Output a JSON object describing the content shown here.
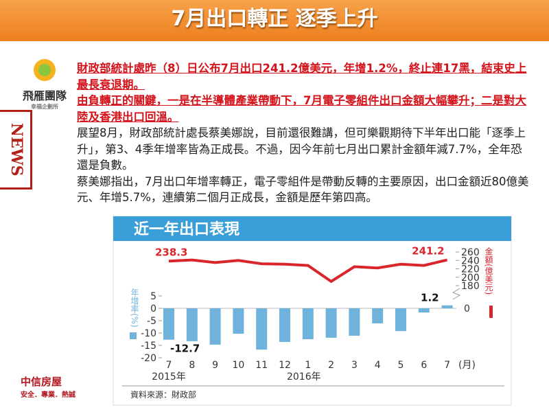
{
  "header": {
    "title": "7月出口轉正 逐季上升",
    "side_label": "NEWS",
    "logo_top": "飛雁團隊",
    "logo_top_sub": "幸福企劃所",
    "logo_bottom": "中信房屋",
    "logo_bottom_sub": "安全．專業．熱誠"
  },
  "paragraphs": [
    {
      "style": "red",
      "text": "財政部統計處昨（8）日公布7月出口241.2億美元，年增1.2%，終止連17黑，結束史上最長衰退期。"
    },
    {
      "style": "red",
      "text": "由負轉正的關鍵，一是在半導體產業帶動下，7月電子零組件出口金額大幅攀升；二是對大陸及香港出口回溫。"
    },
    {
      "style": "black",
      "text": "展望8月，財政部統計處長蔡美娜說，目前還很難講，但可樂觀期待下半年出口能「逐季上升」，第3、4季年增率皆為正成長。不過，因今年前七月出口累計金額年減7.7%，全年恐還是負數。"
    },
    {
      "style": "black",
      "text": "蔡美娜指出，7月出口年增率轉正，電子零組件是帶動反轉的主要原因，出口金額近80億美元、年增5.7%，連續第二個月正成長，金額是歷年第四高。"
    }
  ],
  "chart_data": {
    "type": "bar_line",
    "title": "近一年出口表現",
    "source": "資料來源：財政部",
    "categories": [
      "7",
      "8",
      "9",
      "10",
      "11",
      "12",
      "1",
      "2",
      "3",
      "4",
      "5",
      "6",
      "7"
    ],
    "years": [
      "2015年",
      null,
      null,
      null,
      null,
      null,
      "2016年",
      null,
      null,
      null,
      null,
      null,
      null
    ],
    "x_unit": "(月)",
    "ylabel": "年增率(%)",
    "y2label": "金額(億美元)",
    "ylim": [
      -20,
      5
    ],
    "yticks": [
      5,
      0,
      -5,
      -10,
      -15,
      -20
    ],
    "y2lim": [
      180,
      260
    ],
    "y2ticks": [
      180,
      200,
      220,
      240,
      260
    ],
    "y2_break_tick": 0,
    "series": [
      {
        "type": "bar",
        "color": "#6fb3dc",
        "values": [
          -12.7,
          -13.3,
          -14.7,
          -10.3,
          -16.7,
          -13.6,
          -12.5,
          -11.9,
          -11.1,
          -6.1,
          -9.2,
          -1.7,
          1.2
        ]
      },
      {
        "type": "line",
        "axis": "y2",
        "color": "#d9262c",
        "values": [
          238.3,
          241,
          235,
          240,
          232,
          231,
          228,
          190,
          225,
          222,
          231,
          228,
          241.2
        ]
      }
    ]
  }
}
